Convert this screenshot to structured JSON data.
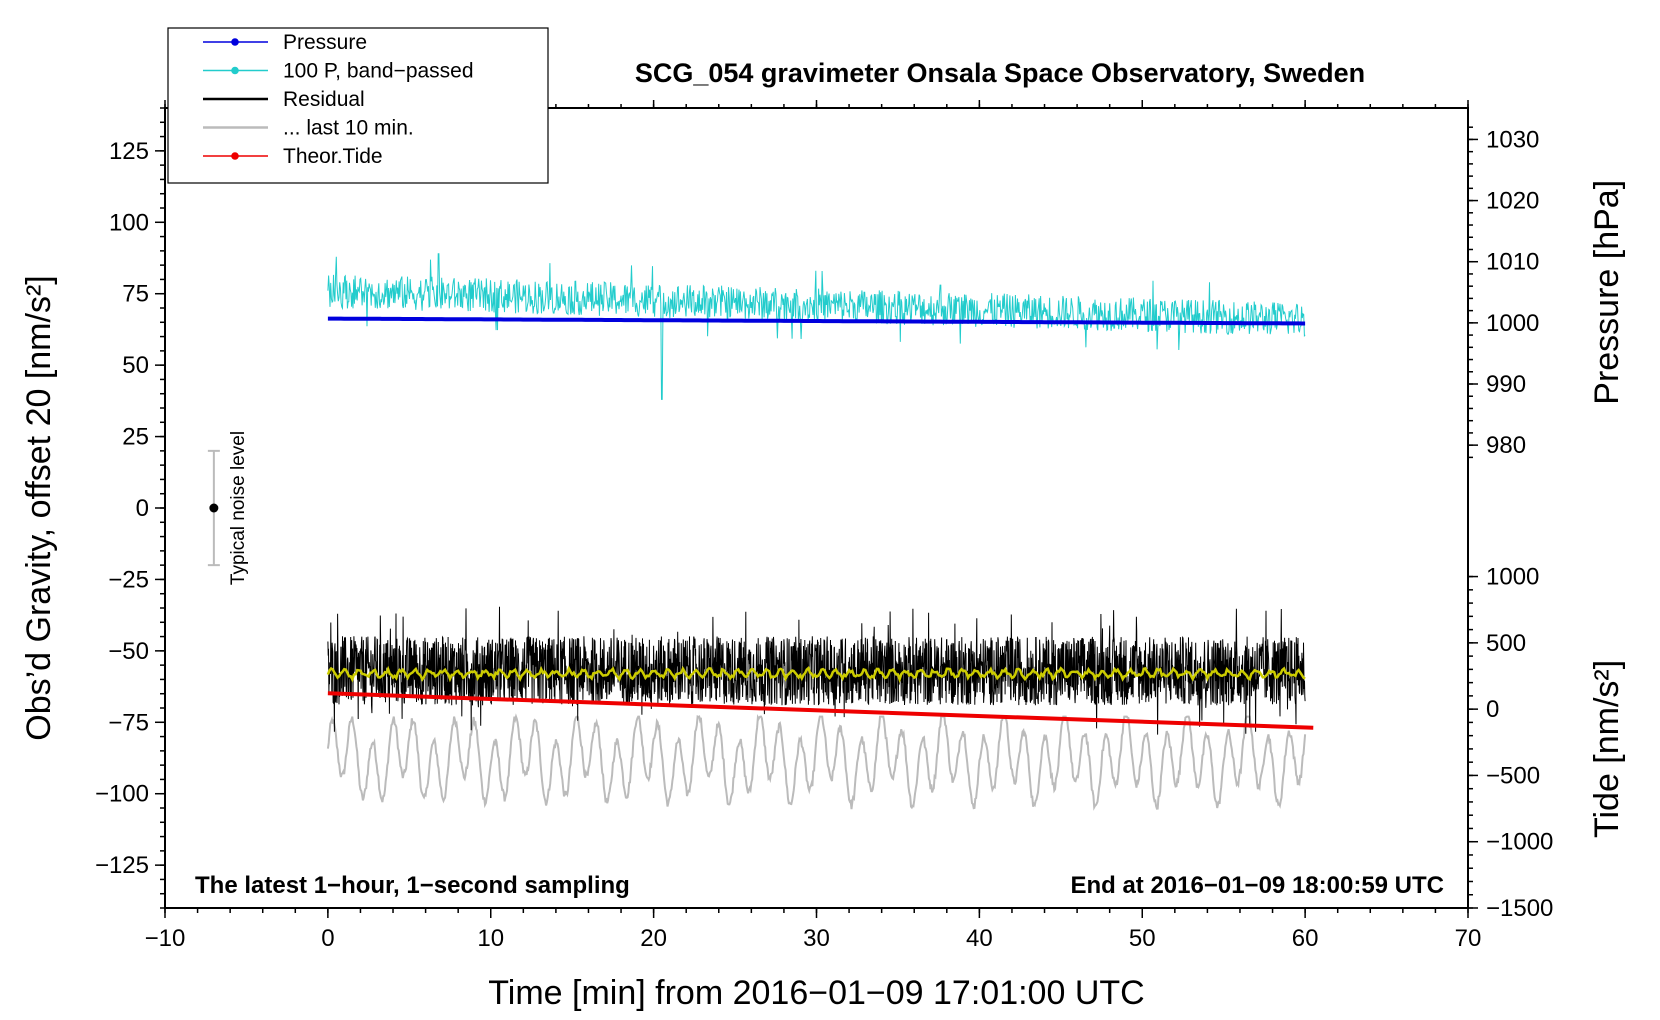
{
  "chart_data": {
    "type": "line",
    "title": "SCG_054 gravimeter Onsala Space Observatory, Sweden",
    "xlabel": "Time [min] from 2016−01−09 17:01:00 UTC",
    "ylabel_left": "Obs’d Gravity, offset 20 [nm/s²]",
    "ylabel_right_top": "Pressure [hPa]",
    "ylabel_right_bottom": "Tide [nm/s²]",
    "xlim": [
      -10,
      70
    ],
    "ylim_left": [
      -140,
      140
    ],
    "x_ticks": [
      "−10",
      "0",
      "10",
      "20",
      "30",
      "40",
      "50",
      "60",
      "70"
    ],
    "x_tick_values": [
      -10,
      0,
      10,
      20,
      30,
      40,
      50,
      60,
      70
    ],
    "y_left_ticks": [
      "125",
      "100",
      "75",
      "50",
      "25",
      "0",
      "−25",
      "−50",
      "−75",
      "−100",
      "−125"
    ],
    "y_left_tick_values": [
      125,
      100,
      75,
      50,
      25,
      0,
      -25,
      -50,
      -75,
      -100,
      -125
    ],
    "pressure_axis": {
      "ticks": [
        "1030",
        "1020",
        "1010",
        "1000",
        "990",
        "980"
      ],
      "tick_values": [
        1030,
        1020,
        1010,
        1000,
        990,
        980
      ],
      "mapping_left": [
        [
          1030,
          129
        ],
        [
          980,
          22
        ]
      ]
    },
    "tide_axis": {
      "ticks": [
        "1000",
        "500",
        "0",
        "−500",
        "−1000",
        "−1500"
      ],
      "tick_values": [
        1000,
        500,
        0,
        -500,
        -1000,
        -1500
      ],
      "mapping_left": [
        [
          1000,
          -24
        ],
        [
          -1500,
          -140
        ]
      ]
    },
    "legend": [
      {
        "label": "Pressure",
        "color": "#0000dd",
        "marker": true
      },
      {
        "label": "100 P, band−passed",
        "color": "#22cccc",
        "marker": true
      },
      {
        "label": "Residual",
        "color": "#000000",
        "marker": false
      },
      {
        "label": "... last 10 min.",
        "color": "#bbbbbb",
        "marker": false
      },
      {
        "label": "Theor.Tide",
        "color": "#ee0000",
        "marker": true
      }
    ],
    "series": [
      {
        "name": "Pressure",
        "color": "#0000dd",
        "x_range": [
          0,
          60
        ],
        "start_hpa": 1000.7,
        "end_hpa": 999.9
      },
      {
        "name": "100 P, band−passed",
        "color": "#22cccc",
        "x_range": [
          0,
          60
        ],
        "mean_start": 76,
        "mean_end": 66,
        "amplitude": 6,
        "spikes": [
          {
            "x": 20.5,
            "y": 38
          },
          {
            "x": 6.8,
            "y": 89
          },
          {
            "x": 37.6,
            "y": 78
          }
        ]
      },
      {
        "name": "Residual",
        "color": "#000000",
        "x_range": [
          0,
          60
        ],
        "mean": -57,
        "amplitude": 22,
        "min": -83,
        "max": -29
      },
      {
        "name": "Residual smoothed",
        "color": "#cccc00",
        "x_range": [
          0,
          60
        ],
        "mean": -58
      },
      {
        "name": "... last 10 min.",
        "color": "#bbbbbb",
        "x_range": [
          0,
          60
        ],
        "mean": -88,
        "amplitude": 15,
        "min": -107,
        "max": -73
      },
      {
        "name": "Theor.Tide",
        "color": "#ee0000",
        "x_range": [
          0,
          60.5
        ],
        "start_nms2": 120,
        "end_nms2": -140
      }
    ],
    "noise_bar": {
      "label": "Typical noise level",
      "x": -7,
      "center": 0,
      "half_range": 20
    },
    "annotations": {
      "left": "The latest 1−hour, 1−second sampling",
      "right": "End at 2016−01−09 18:00:59 UTC"
    }
  }
}
